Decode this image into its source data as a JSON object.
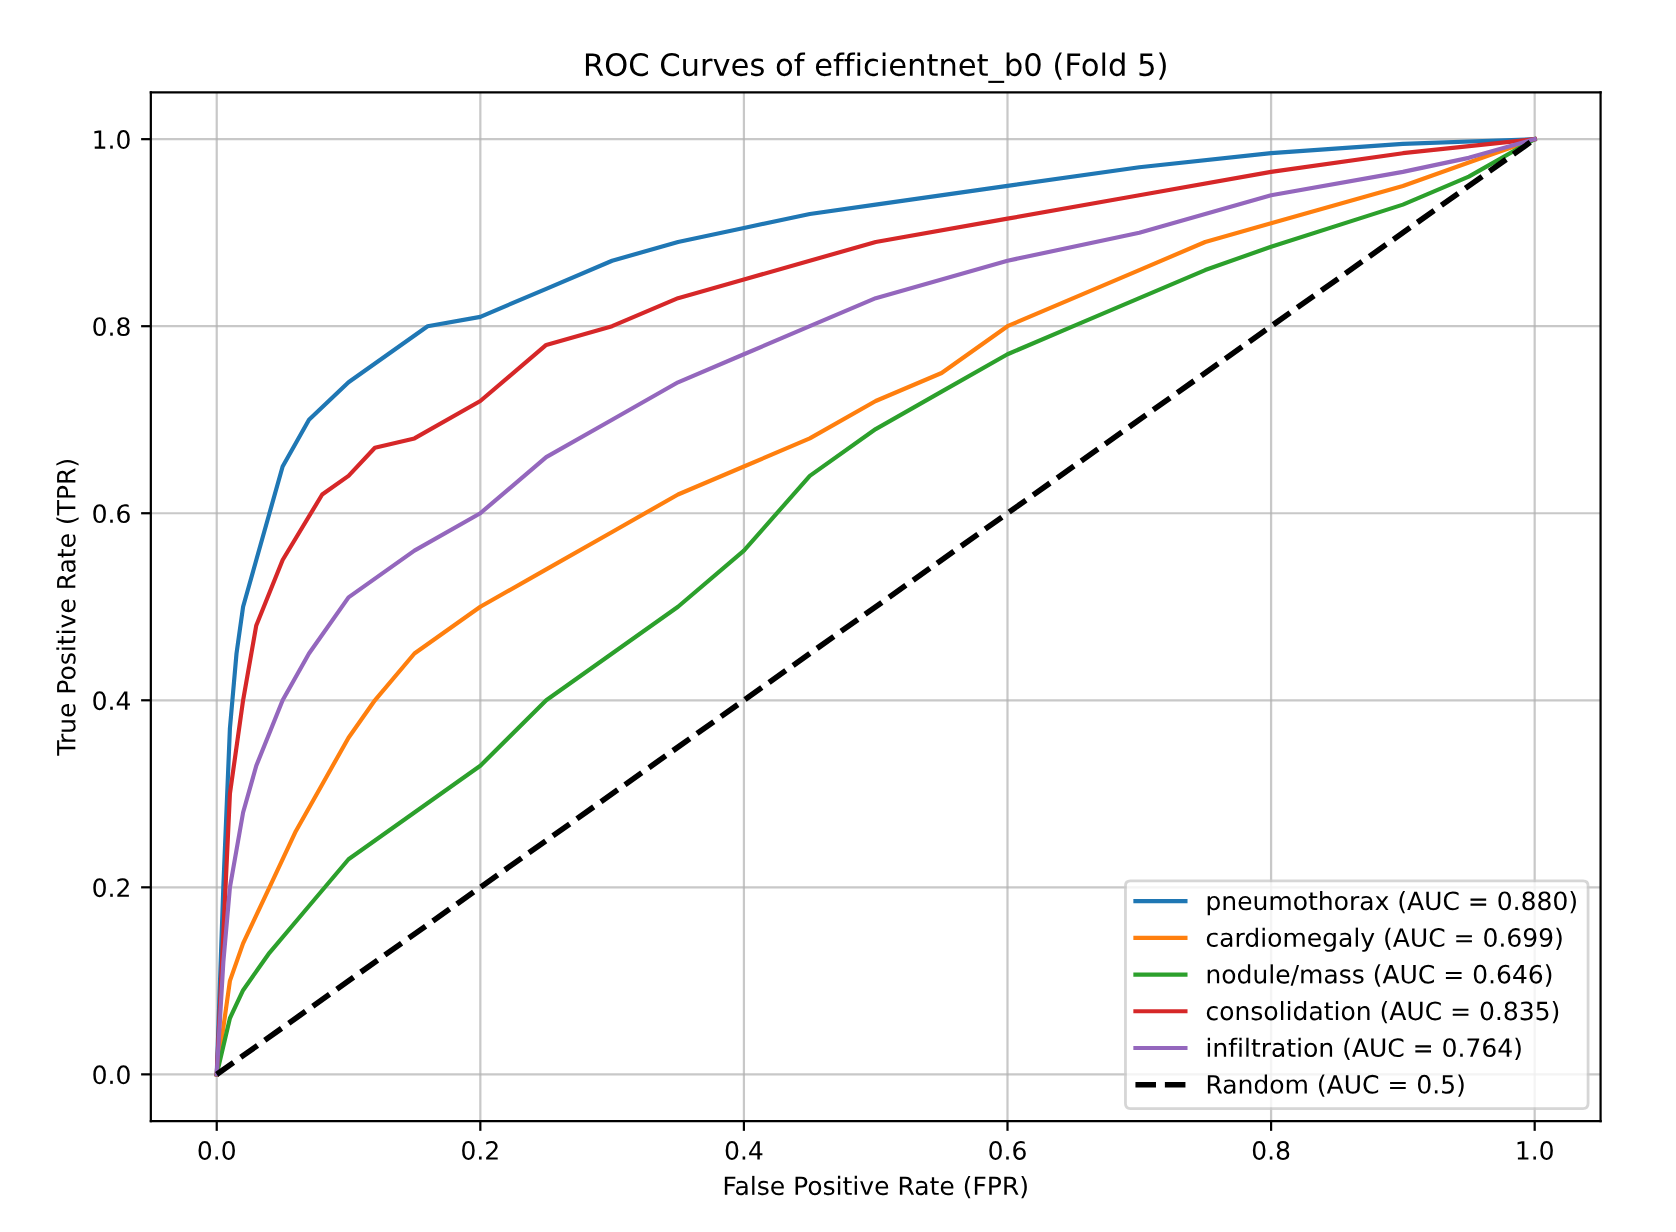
{
  "chart_data": {
    "type": "line",
    "title": "ROC Curves of efficientnet_b0 (Fold 5)",
    "xlabel": "False Positive Rate (FPR)",
    "ylabel": "True Positive Rate (TPR)",
    "xlim": [
      -0.05,
      1.05
    ],
    "ylim": [
      -0.05,
      1.05
    ],
    "xticks": [
      {
        "value": 0,
        "label": "0.0"
      },
      0.2,
      0.4,
      0.6,
      0.8,
      {
        "value": 1,
        "label": "1.0"
      }
    ],
    "yticks": [
      {
        "value": 0,
        "label": "0.0"
      },
      0.2,
      0.4,
      0.6,
      0.8,
      {
        "value": 1,
        "label": "1.0"
      }
    ],
    "grid": true,
    "legend": "bottom right",
    "series": [
      {
        "name": "pneumothorax (AUC = 0.880)",
        "color": "#1f77b4",
        "x": [
          0,
          0.005,
          0.01,
          0.015,
          0.02,
          0.03,
          0.04,
          0.05,
          0.07,
          0.1,
          0.13,
          0.16,
          0.2,
          0.25,
          0.3,
          0.35,
          0.4,
          0.45,
          0.5,
          0.6,
          0.7,
          0.8,
          0.9,
          1
        ],
        "values": [
          0,
          0.2,
          0.37,
          0.45,
          0.5,
          0.55,
          0.6,
          0.65,
          0.7,
          0.74,
          0.77,
          0.8,
          0.81,
          0.84,
          0.87,
          0.89,
          0.905,
          0.92,
          0.93,
          0.95,
          0.97,
          0.985,
          0.995,
          1
        ]
      },
      {
        "name": "cardiomegaly (AUC = 0.699)",
        "color": "#ff7f0e",
        "x": [
          0,
          0.005,
          0.01,
          0.02,
          0.04,
          0.06,
          0.08,
          0.1,
          0.12,
          0.15,
          0.2,
          0.25,
          0.3,
          0.35,
          0.4,
          0.45,
          0.5,
          0.55,
          0.6,
          0.65,
          0.7,
          0.75,
          0.8,
          0.9,
          0.95,
          1
        ],
        "values": [
          0,
          0.05,
          0.1,
          0.14,
          0.2,
          0.26,
          0.31,
          0.36,
          0.4,
          0.45,
          0.5,
          0.54,
          0.58,
          0.62,
          0.65,
          0.68,
          0.72,
          0.75,
          0.8,
          0.83,
          0.86,
          0.89,
          0.91,
          0.95,
          0.975,
          1
        ]
      },
      {
        "name": "nodule/mass (AUC = 0.646)",
        "color": "#2ca02c",
        "x": [
          0,
          0.005,
          0.01,
          0.02,
          0.04,
          0.07,
          0.1,
          0.15,
          0.2,
          0.25,
          0.3,
          0.35,
          0.4,
          0.45,
          0.5,
          0.55,
          0.6,
          0.65,
          0.7,
          0.75,
          0.8,
          0.9,
          0.95,
          1
        ],
        "values": [
          0,
          0.03,
          0.06,
          0.09,
          0.13,
          0.18,
          0.23,
          0.28,
          0.33,
          0.4,
          0.45,
          0.5,
          0.56,
          0.64,
          0.69,
          0.73,
          0.77,
          0.8,
          0.83,
          0.86,
          0.885,
          0.93,
          0.96,
          1
        ]
      },
      {
        "name": "consolidation (AUC = 0.835)",
        "color": "#d62728",
        "x": [
          0,
          0.005,
          0.01,
          0.02,
          0.03,
          0.05,
          0.08,
          0.1,
          0.12,
          0.15,
          0.2,
          0.25,
          0.3,
          0.35,
          0.4,
          0.45,
          0.5,
          0.6,
          0.7,
          0.8,
          0.9,
          1
        ],
        "values": [
          0,
          0.15,
          0.3,
          0.4,
          0.48,
          0.55,
          0.62,
          0.64,
          0.67,
          0.68,
          0.72,
          0.78,
          0.8,
          0.83,
          0.85,
          0.87,
          0.89,
          0.915,
          0.94,
          0.965,
          0.985,
          1
        ]
      },
      {
        "name": "infiltration (AUC = 0.764)",
        "color": "#9467bd",
        "x": [
          0,
          0.005,
          0.01,
          0.02,
          0.03,
          0.05,
          0.07,
          0.1,
          0.15,
          0.2,
          0.25,
          0.3,
          0.35,
          0.4,
          0.45,
          0.5,
          0.6,
          0.7,
          0.8,
          0.9,
          0.95,
          1
        ],
        "values": [
          0,
          0.12,
          0.2,
          0.28,
          0.33,
          0.4,
          0.45,
          0.51,
          0.56,
          0.6,
          0.66,
          0.7,
          0.74,
          0.77,
          0.8,
          0.83,
          0.87,
          0.9,
          0.94,
          0.965,
          0.98,
          1
        ]
      },
      {
        "name": "Random (AUC = 0.5)",
        "color": "#000000",
        "line_style": "dashed",
        "x": [
          0,
          1
        ],
        "values": [
          0,
          1
        ]
      }
    ]
  }
}
